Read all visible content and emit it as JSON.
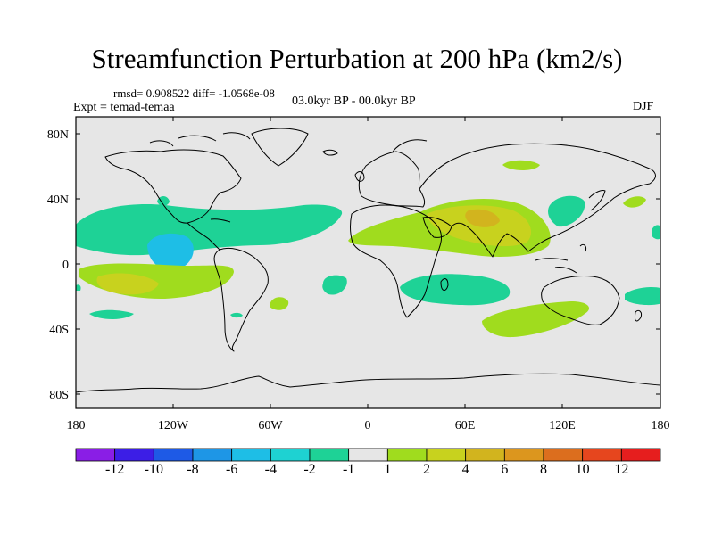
{
  "title": "Streamfunction Perturbation at 200 hPa (km2/s)",
  "stats": "rmsd= 0.908522 diff= -1.0568e-08",
  "experiment": "Expt = temad-temaa",
  "period": "03.0kyr BP - 00.0kyr BP",
  "season": "DJF",
  "lat_labels": [
    "80N",
    "40N",
    "0",
    "40S",
    "80S"
  ],
  "lon_labels": [
    "180",
    "120W",
    "60W",
    "0",
    "60E",
    "120E",
    "180"
  ],
  "colorbar": {
    "colors": [
      "#8a1ee6",
      "#3c1ee6",
      "#1e5ae6",
      "#1e96e6",
      "#1ebee6",
      "#1ed2d2",
      "#1ed296",
      "#e6e6e6",
      "#a0dc1e",
      "#c8d21e",
      "#d2b41e",
      "#dc961e",
      "#dc6e1e",
      "#e6461e",
      "#e61e1e"
    ],
    "labels": [
      "-12",
      "-10",
      "-8",
      "-6",
      "-4",
      "-2",
      "-1",
      "1",
      "2",
      "4",
      "6",
      "8",
      "10",
      "12"
    ]
  },
  "colors": {
    "background": "#e6e6e6",
    "coast": "#000000"
  }
}
